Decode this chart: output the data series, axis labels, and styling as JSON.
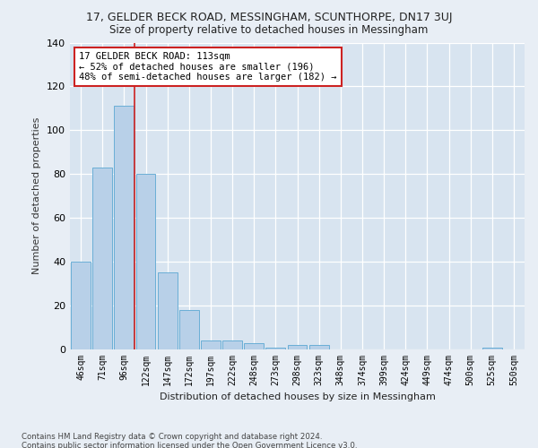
{
  "title_line1": "17, GELDER BECK ROAD, MESSINGHAM, SCUNTHORPE, DN17 3UJ",
  "title_line2": "Size of property relative to detached houses in Messingham",
  "xlabel": "Distribution of detached houses by size in Messingham",
  "ylabel": "Number of detached properties",
  "bar_labels": [
    "46sqm",
    "71sqm",
    "96sqm",
    "122sqm",
    "147sqm",
    "172sqm",
    "197sqm",
    "222sqm",
    "248sqm",
    "273sqm",
    "298sqm",
    "323sqm",
    "348sqm",
    "374sqm",
    "399sqm",
    "424sqm",
    "449sqm",
    "474sqm",
    "500sqm",
    "525sqm",
    "550sqm"
  ],
  "bar_heights": [
    40,
    83,
    111,
    80,
    35,
    18,
    4,
    4,
    3,
    1,
    2,
    2,
    0,
    0,
    0,
    0,
    0,
    0,
    0,
    1,
    0
  ],
  "bar_color": "#b8d0e8",
  "bar_edge_color": "#6aaed6",
  "vline_x": 2.5,
  "vline_color": "#cc2222",
  "annotation_text": "17 GELDER BECK ROAD: 113sqm\n← 52% of detached houses are smaller (196)\n48% of semi-detached houses are larger (182) →",
  "annotation_box_color": "#ffffff",
  "annotation_box_edge": "#cc2222",
  "ylim": [
    0,
    140
  ],
  "yticks": [
    0,
    20,
    40,
    60,
    80,
    100,
    120,
    140
  ],
  "footer_text": "Contains HM Land Registry data © Crown copyright and database right 2024.\nContains public sector information licensed under the Open Government Licence v3.0.",
  "bg_color": "#e8eef5",
  "plot_bg_color": "#d8e4f0"
}
